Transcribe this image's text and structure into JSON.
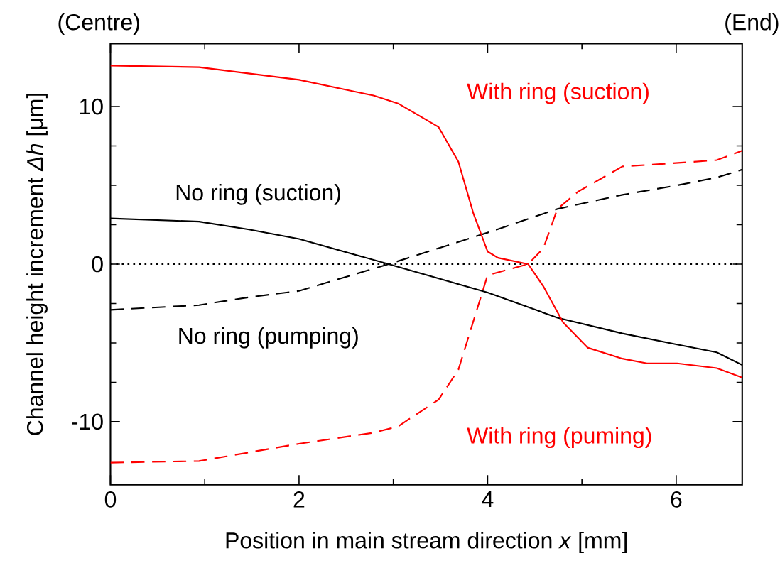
{
  "chart_data": {
    "type": "line",
    "xlabel": "Position in main stream direction *x* [mm]",
    "ylabel": "Channel height increment  *Δh* [μm]",
    "xlim": [
      0,
      6.7
    ],
    "ylim": [
      -14,
      14
    ],
    "xticks": [
      0,
      2,
      4,
      6
    ],
    "yticks": [
      -10,
      0,
      10
    ],
    "grid": false,
    "marker": "none",
    "annotations": [
      "(Centre)",
      "(End)"
    ],
    "ref_lines": [
      {
        "axis": "y",
        "value": 0,
        "color": "#000000",
        "line_style": "dotted"
      }
    ],
    "series": [
      {
        "name": "No ring (suction)",
        "color": "#000000",
        "line_style": "solid",
        "x": [
          0,
          0.94,
          1.47,
          2.0,
          2.95,
          4.0,
          4.74,
          5.43,
          6.01,
          6.43,
          6.7
        ],
        "values": [
          2.9,
          2.7,
          2.2,
          1.6,
          0,
          -1.8,
          -3.4,
          -4.4,
          -5.1,
          -5.6,
          -6.4
        ]
      },
      {
        "name": "No ring (pumping)",
        "color": "#000000",
        "line_style": "dashed",
        "x": [
          0,
          0.94,
          1.47,
          2.0,
          2.95,
          4.0,
          4.74,
          5.43,
          6.01,
          6.43,
          6.7
        ],
        "values": [
          -2.9,
          -2.6,
          -2.1,
          -1.7,
          0,
          2.0,
          3.5,
          4.4,
          5.0,
          5.5,
          6.0
        ]
      },
      {
        "name": "With ring (suction)",
        "color": "#ff0000",
        "line_style": "solid",
        "x": [
          0,
          0.94,
          2.0,
          2.79,
          3.05,
          3.48,
          3.69,
          3.85,
          4.0,
          4.11,
          4.43,
          4.59,
          4.8,
          5.06,
          5.43,
          5.69,
          6.01,
          6.43,
          6.7
        ],
        "values": [
          12.6,
          12.5,
          11.7,
          10.7,
          10.2,
          8.7,
          6.5,
          3.2,
          0.8,
          0.4,
          0,
          -1.4,
          -3.7,
          -5.3,
          -6.0,
          -6.3,
          -6.3,
          -6.6,
          -7.2
        ]
      },
      {
        "name": "With ring (puming)",
        "color": "#ff0000",
        "line_style": "dashed",
        "x": [
          0,
          0.94,
          2.0,
          2.79,
          3.05,
          3.48,
          3.69,
          3.85,
          4.0,
          4.43,
          4.59,
          4.74,
          4.96,
          5.43,
          5.96,
          6.43,
          6.7
        ],
        "values": [
          -12.6,
          -12.5,
          -11.4,
          -10.7,
          -10.3,
          -8.6,
          -6.7,
          -3.6,
          -0.7,
          0,
          1.0,
          3.5,
          4.6,
          6.2,
          6.4,
          6.6,
          7.2
        ]
      }
    ]
  }
}
